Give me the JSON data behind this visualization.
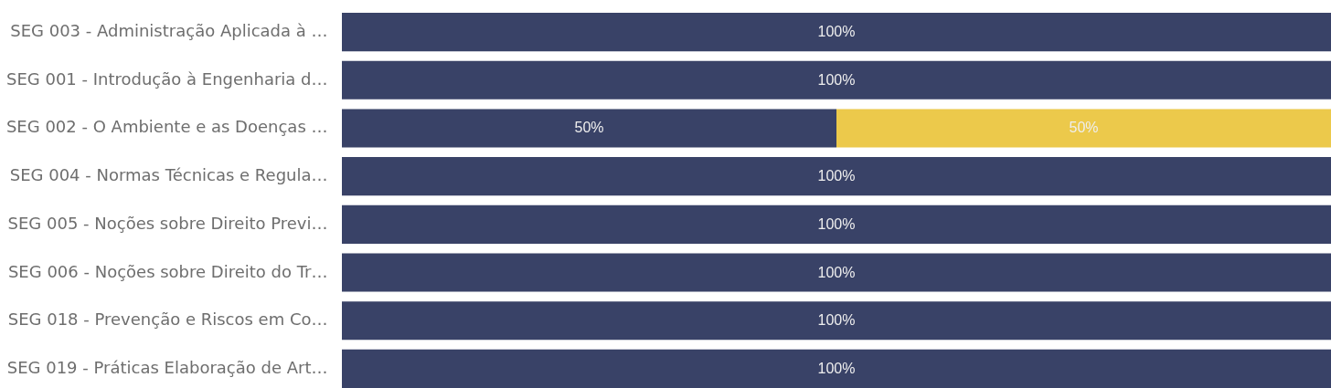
{
  "chart_data": {
    "type": "bar",
    "orientation": "horizontal",
    "stacked": true,
    "categories": [
      "SEG 003 - Administração Aplicada à …",
      "SEG 001 - Introdução à Engenharia d…",
      "SEG 002 - O Ambiente e as Doenças …",
      "SEG 004 - Normas Técnicas e Regula…",
      "SEG 005 - Noções sobre Direito Previ…",
      "SEG 006 - Noções sobre Direito do Tr…",
      "SEG 018 - Prevenção e Riscos em Co…",
      "SEG 019 - Práticas Elaboração de Art…"
    ],
    "series": [
      {
        "color": "#394267",
        "values": [
          100,
          100,
          50,
          100,
          100,
          100,
          100,
          100
        ],
        "value_labels": [
          "100%",
          "100%",
          "50%",
          "100%",
          "100%",
          "100%",
          "100%",
          "100%"
        ]
      },
      {
        "color": "#ecc94b",
        "values": [
          null,
          null,
          50,
          null,
          null,
          null,
          null,
          null
        ],
        "value_labels": [
          null,
          null,
          "50%",
          null,
          null,
          null,
          null,
          null
        ]
      }
    ],
    "tick_labels": "y"
  }
}
